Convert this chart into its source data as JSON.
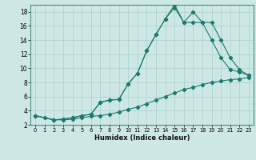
{
  "xlabel": "Humidex (Indice chaleur)",
  "bg_color": "#cde8e4",
  "grid_color": "#aacfca",
  "line_color": "#1a7a6e",
  "xlim": [
    -0.5,
    23.5
  ],
  "ylim": [
    2,
    19
  ],
  "xticks": [
    0,
    1,
    2,
    3,
    4,
    5,
    6,
    7,
    8,
    9,
    10,
    11,
    12,
    13,
    14,
    15,
    16,
    17,
    18,
    19,
    20,
    21,
    22,
    23
  ],
  "yticks": [
    2,
    4,
    6,
    8,
    10,
    12,
    14,
    16,
    18
  ],
  "line1_x": [
    0,
    1,
    2,
    3,
    4,
    5,
    6,
    7,
    8,
    9,
    10,
    11,
    12,
    13,
    14,
    15,
    16,
    17,
    18,
    19,
    20,
    21,
    22,
    23
  ],
  "line1_y": [
    3.3,
    3.0,
    2.7,
    2.7,
    2.8,
    3.0,
    3.2,
    3.3,
    3.5,
    3.8,
    4.2,
    4.5,
    5.0,
    5.5,
    6.0,
    6.5,
    7.0,
    7.3,
    7.7,
    8.0,
    8.2,
    8.4,
    8.5,
    8.7
  ],
  "line2_x": [
    0,
    2,
    3,
    4,
    5,
    6,
    7,
    8,
    9,
    10,
    11,
    12,
    13,
    14,
    15,
    16,
    17,
    18,
    19,
    20,
    21,
    22,
    23
  ],
  "line2_y": [
    3.3,
    2.7,
    2.8,
    3.0,
    3.3,
    3.5,
    5.2,
    5.5,
    5.6,
    7.8,
    9.3,
    12.5,
    14.8,
    17.0,
    18.6,
    16.5,
    16.5,
    16.5,
    14.0,
    11.5,
    9.8,
    9.5,
    9.0
  ],
  "line3_x": [
    0,
    2,
    3,
    4,
    5,
    6,
    7,
    8,
    9,
    10,
    11,
    12,
    13,
    14,
    15,
    16,
    17,
    18,
    19,
    20,
    21,
    22,
    23
  ],
  "line3_y": [
    3.3,
    2.7,
    2.8,
    3.0,
    3.3,
    3.5,
    5.2,
    5.5,
    5.6,
    7.8,
    9.3,
    12.5,
    14.8,
    17.0,
    19.0,
    16.5,
    18.0,
    16.5,
    16.5,
    14.0,
    11.5,
    9.8,
    9.0
  ]
}
